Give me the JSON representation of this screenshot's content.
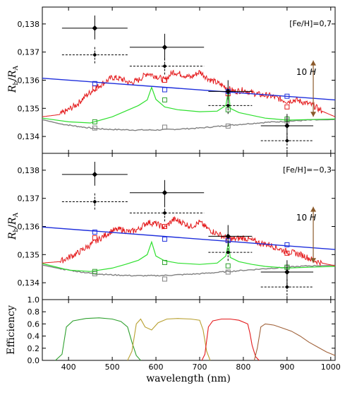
{
  "chart_data": [
    {
      "type": "line",
      "panel": "top",
      "annotation": "[Fe/H]=0,7",
      "ylabel_main": "R",
      "ylabel_sub_b": "b",
      "ylabel_slash": "/",
      "ylabel_den": "R",
      "ylabel_sub_a": "A",
      "scale_label": "10",
      "scale_label_italic": "H",
      "xlim": [
        340,
        1010
      ],
      "ylim": [
        0.1334,
        0.1386
      ],
      "yticks": [
        0.134,
        0.135,
        0.136,
        0.137,
        0.138
      ],
      "ytick_labels": [
        "0,134",
        "0,135",
        "0,136",
        "0,137",
        "0,138"
      ],
      "scale_bar": {
        "x": 960,
        "y_low": 0.1347,
        "y_high": 0.1367,
        "color": "#8B5A2B"
      },
      "blue_line": {
        "x": [
          340,
          1010
        ],
        "y": [
          0.13607,
          0.1353
        ],
        "color": "#1f2fdc"
      },
      "grey_line": {
        "x": [
          340,
          380,
          420,
          460,
          500,
          550,
          600,
          650,
          700,
          750,
          800,
          850,
          900,
          950,
          1010
        ],
        "y": [
          0.1346,
          0.13445,
          0.13436,
          0.13428,
          0.13425,
          0.13423,
          0.13423,
          0.13426,
          0.1343,
          0.13437,
          0.13444,
          0.1345,
          0.13454,
          0.13458,
          0.1346
        ],
        "color": "#808080"
      },
      "green_line": {
        "x": [
          340,
          400,
          450,
          500,
          530,
          560,
          580,
          590,
          600,
          620,
          650,
          700,
          740,
          760,
          766,
          770,
          790,
          820,
          850,
          900,
          950,
          1010
        ],
        "y": [
          0.13465,
          0.13452,
          0.13448,
          0.1347,
          0.1349,
          0.1351,
          0.1353,
          0.13575,
          0.13532,
          0.13505,
          0.13495,
          0.13488,
          0.1349,
          0.1351,
          0.13565,
          0.135,
          0.13485,
          0.13475,
          0.13465,
          0.13458,
          0.1346,
          0.13462
        ],
        "color": "#2ee02e"
      },
      "red_line": {
        "x": [
          340,
          380,
          400,
          420,
          440,
          460,
          480,
          500,
          520,
          540,
          560,
          580,
          600,
          620,
          640,
          660,
          680,
          700,
          720,
          740,
          760,
          780,
          800,
          820,
          840,
          860,
          880,
          900,
          920,
          940,
          960,
          980,
          1010
        ],
        "y": [
          0.1347,
          0.13478,
          0.13495,
          0.13515,
          0.13545,
          0.1357,
          0.1359,
          0.1361,
          0.13605,
          0.1359,
          0.136,
          0.13625,
          0.13615,
          0.136,
          0.1363,
          0.1362,
          0.1361,
          0.1363,
          0.13605,
          0.1359,
          0.13575,
          0.1356,
          0.13565,
          0.13555,
          0.13548,
          0.13545,
          0.13535,
          0.13525,
          0.1353,
          0.1352,
          0.1351,
          0.1349,
          0.1347
        ],
        "color": "#e41a1c"
      },
      "blue_squares": {
        "x": [
          460,
          620,
          765,
          900
        ],
        "y": [
          0.13588,
          0.13566,
          0.1356,
          0.13543
        ]
      },
      "red_squares": {
        "x": [
          460,
          620,
          765,
          900
        ],
        "y": [
          0.13572,
          0.136,
          0.13552,
          0.13505
        ]
      },
      "green_squares": {
        "x": [
          460,
          620,
          765,
          900
        ],
        "y": [
          0.13452,
          0.1353,
          0.13495,
          0.13462
        ]
      },
      "grey_squares": {
        "x": [
          460,
          620,
          765,
          900
        ],
        "y": [
          0.1343,
          0.13433,
          0.13437,
          0.13455
        ]
      },
      "points_solid": [
        {
          "x": 460,
          "y": 0.13785,
          "xerr": [
            385,
            535
          ],
          "yerr": [
            0.13745,
            0.1383
          ]
        },
        {
          "x": 620,
          "y": 0.13717,
          "xerr": [
            540,
            710
          ],
          "yerr": [
            0.1367,
            0.13765
          ]
        },
        {
          "x": 765,
          "y": 0.1356,
          "xerr": [
            720,
            820
          ],
          "yerr": [
            0.13525,
            0.136
          ]
        },
        {
          "x": 900,
          "y": 0.13438,
          "xerr": [
            840,
            960
          ],
          "yerr": [
            0.1339,
            0.1348
          ]
        }
      ],
      "points_dashed": [
        {
          "x": 460,
          "y": 0.1369,
          "xerr": [
            385,
            535
          ],
          "yerr": [
            0.1366,
            0.1372
          ]
        },
        {
          "x": 620,
          "y": 0.1365,
          "xerr": [
            540,
            710
          ],
          "yerr": [
            0.1362,
            0.1368
          ]
        },
        {
          "x": 765,
          "y": 0.1351,
          "xerr": [
            720,
            820
          ],
          "yerr": [
            0.1348,
            0.1354
          ]
        },
        {
          "x": 900,
          "y": 0.13385,
          "xerr": [
            840,
            960
          ],
          "yerr": [
            0.13355,
            0.13415
          ]
        }
      ]
    },
    {
      "type": "line",
      "panel": "middle",
      "annotation": "[Fe/H]=−0,3",
      "ylabel_main": "R",
      "ylabel_sub_b": "b",
      "ylabel_slash": "/",
      "ylabel_den": "R",
      "ylabel_sub_a": "A",
      "scale_label": "10",
      "scale_label_italic": "H",
      "xlim": [
        340,
        1010
      ],
      "ylim": [
        0.1334,
        0.1386
      ],
      "yticks": [
        0.134,
        0.135,
        0.136,
        0.137,
        0.138
      ],
      "ytick_labels": [
        "0,134",
        "0,135",
        "0,136",
        "0,137",
        "0,138"
      ],
      "scale_bar": {
        "x": 960,
        "y_low": 0.1347,
        "y_high": 0.1367,
        "color": "#8B5A2B"
      },
      "blue_line": {
        "x": [
          340,
          1010
        ],
        "y": [
          0.13598,
          0.13518
        ],
        "color": "#1f2fdc"
      },
      "grey_line": {
        "x": [
          340,
          380,
          420,
          460,
          500,
          550,
          600,
          650,
          700,
          750,
          800,
          850,
          900,
          950,
          1010
        ],
        "y": [
          0.13463,
          0.1345,
          0.1344,
          0.13432,
          0.13428,
          0.13425,
          0.13425,
          0.13428,
          0.13432,
          0.13438,
          0.13444,
          0.1345,
          0.13455,
          0.1346,
          0.13462
        ],
        "color": "#808080"
      },
      "green_line": {
        "x": [
          340,
          400,
          450,
          500,
          530,
          560,
          580,
          590,
          600,
          620,
          650,
          700,
          740,
          760,
          766,
          770,
          790,
          820,
          850,
          900,
          950,
          1010
        ],
        "y": [
          0.13468,
          0.13445,
          0.1344,
          0.13452,
          0.13465,
          0.1348,
          0.135,
          0.13545,
          0.13495,
          0.13478,
          0.1347,
          0.13465,
          0.1347,
          0.13495,
          0.13545,
          0.1349,
          0.13475,
          0.13465,
          0.13458,
          0.13452,
          0.13455,
          0.13458
        ],
        "color": "#2ee02e"
      },
      "red_line": {
        "x": [
          340,
          380,
          400,
          420,
          440,
          460,
          480,
          500,
          520,
          540,
          560,
          580,
          600,
          620,
          640,
          660,
          680,
          700,
          720,
          740,
          760,
          780,
          800,
          820,
          840,
          860,
          880,
          900,
          920,
          940,
          960,
          980,
          1010
        ],
        "y": [
          0.1347,
          0.13475,
          0.1349,
          0.13505,
          0.13525,
          0.13545,
          0.13565,
          0.13585,
          0.1359,
          0.1358,
          0.1359,
          0.13615,
          0.1361,
          0.13595,
          0.13625,
          0.13615,
          0.136,
          0.13615,
          0.1359,
          0.13575,
          0.1356,
          0.13555,
          0.1356,
          0.1355,
          0.1354,
          0.13535,
          0.13522,
          0.1351,
          0.13505,
          0.13495,
          0.1348,
          0.1347,
          0.1346
        ],
        "color": "#e41a1c"
      },
      "blue_squares": {
        "x": [
          460,
          620,
          765,
          900
        ],
        "y": [
          0.1358,
          0.13555,
          0.1355,
          0.13535
        ]
      },
      "red_squares": {
        "x": [
          460,
          620,
          765,
          900
        ],
        "y": [
          0.1356,
          0.136,
          0.1355,
          0.13505
        ]
      },
      "green_squares": {
        "x": [
          460,
          620,
          765,
          900
        ],
        "y": [
          0.1344,
          0.13472,
          0.1346,
          0.13455
        ]
      },
      "grey_squares": {
        "x": [
          460,
          620,
          765,
          900
        ],
        "y": [
          0.13432,
          0.13413,
          0.13438,
          0.13455
        ]
      },
      "points_solid": [
        {
          "x": 460,
          "y": 0.13785,
          "xerr": [
            385,
            535
          ],
          "yerr": [
            0.13745,
            0.1383
          ]
        },
        {
          "x": 620,
          "y": 0.1372,
          "xerr": [
            540,
            710
          ],
          "yerr": [
            0.13675,
            0.13765
          ]
        },
        {
          "x": 765,
          "y": 0.13565,
          "xerr": [
            720,
            820
          ],
          "yerr": [
            0.1353,
            0.13605
          ]
        },
        {
          "x": 900,
          "y": 0.13438,
          "xerr": [
            840,
            960
          ],
          "yerr": [
            0.1339,
            0.1348
          ]
        }
      ],
      "points_dashed": [
        {
          "x": 460,
          "y": 0.13688,
          "xerr": [
            385,
            535
          ],
          "yerr": [
            0.1366,
            0.1372
          ]
        },
        {
          "x": 620,
          "y": 0.13648,
          "xerr": [
            540,
            710
          ],
          "yerr": [
            0.13618,
            0.13678
          ]
        },
        {
          "x": 765,
          "y": 0.13508,
          "xerr": [
            720,
            820
          ],
          "yerr": [
            0.13478,
            0.13538
          ]
        },
        {
          "x": 900,
          "y": 0.13385,
          "xerr": [
            840,
            960
          ],
          "yerr": [
            0.13355,
            0.13415
          ]
        }
      ]
    },
    {
      "type": "line",
      "panel": "bottom",
      "ylabel": "Efficiency",
      "xlabel": "wavelength (nm)",
      "xlim": [
        340,
        1010
      ],
      "ylim": [
        0,
        1.0
      ],
      "yticks": [
        0.0,
        0.2,
        0.4,
        0.6,
        0.8,
        1.0
      ],
      "ytick_labels": [
        "0.0",
        "0.2",
        "0.4",
        "0.6",
        "0.8",
        "1.0"
      ],
      "xticks": [
        400,
        500,
        600,
        700,
        800,
        900,
        1000
      ],
      "xtick_labels": [
        "400",
        "500",
        "600",
        "700",
        "800",
        "900",
        "1000"
      ],
      "series": [
        {
          "color": "#2ea02e",
          "x": [
            370,
            385,
            395,
            410,
            440,
            470,
            500,
            520,
            535,
            545,
            555,
            565
          ],
          "y": [
            0.0,
            0.1,
            0.55,
            0.65,
            0.69,
            0.7,
            0.68,
            0.64,
            0.55,
            0.3,
            0.08,
            0.0
          ]
        },
        {
          "color": "#b8a030",
          "x": [
            535,
            545,
            555,
            565,
            575,
            590,
            605,
            625,
            650,
            680,
            700,
            708,
            716,
            724
          ],
          "y": [
            0.0,
            0.15,
            0.6,
            0.68,
            0.55,
            0.5,
            0.62,
            0.68,
            0.69,
            0.68,
            0.66,
            0.5,
            0.15,
            0.0
          ]
        },
        {
          "color": "#e41a1c",
          "x": [
            705,
            712,
            720,
            730,
            750,
            770,
            790,
            810,
            815,
            820,
            828,
            836
          ],
          "y": [
            0.0,
            0.1,
            0.55,
            0.65,
            0.68,
            0.68,
            0.66,
            0.6,
            0.45,
            0.25,
            0.06,
            0.0
          ]
        },
        {
          "color": "#a0623a",
          "x": [
            825,
            832,
            840,
            850,
            870,
            890,
            910,
            930,
            950,
            970,
            990,
            1010
          ],
          "y": [
            0.0,
            0.2,
            0.55,
            0.6,
            0.58,
            0.53,
            0.48,
            0.4,
            0.3,
            0.22,
            0.14,
            0.08
          ]
        }
      ]
    }
  ]
}
